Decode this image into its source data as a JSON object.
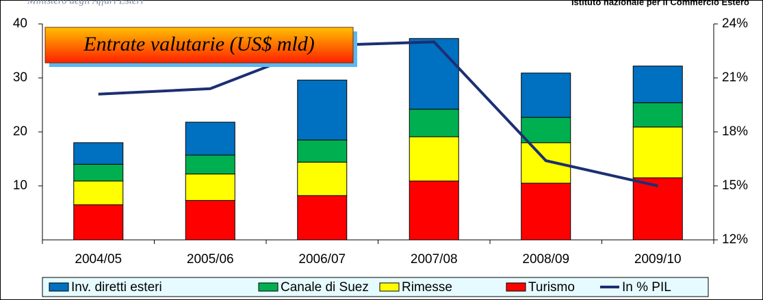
{
  "header": {
    "left": "Ministero degli Affari Esteri",
    "right": "Istituto nazionale per il Commercio Estero"
  },
  "chart_data": {
    "type": "bar",
    "stacked": true,
    "title": "Entrate valutarie (US$ mld)",
    "categories": [
      "2004/05",
      "2005/06",
      "2006/07",
      "2007/08",
      "2008/09",
      "2009/10"
    ],
    "series": [
      {
        "name": "Inv. diretti esteri",
        "color": "#0070c0",
        "values": [
          4.0,
          6.1,
          11.1,
          13.1,
          8.2,
          6.8
        ]
      },
      {
        "name": "Canale di Suez",
        "color": "#00b050",
        "values": [
          3.1,
          3.5,
          4.1,
          5.1,
          4.7,
          4.5
        ]
      },
      {
        "name": "Rimesse",
        "color": "#ffff00",
        "values": [
          4.4,
          4.9,
          6.2,
          8.2,
          7.5,
          9.4
        ]
      },
      {
        "name": "Turismo",
        "color": "#ff0000",
        "values": [
          6.5,
          7.3,
          8.2,
          10.9,
          10.5,
          11.5
        ]
      },
      {
        "name": "In % PIL",
        "color": "#1c2f73",
        "type": "line",
        "axis": "y2",
        "values": [
          20.1,
          20.4,
          22.8,
          23.0,
          16.4,
          15.0
        ]
      }
    ],
    "ylim": [
      0,
      40
    ],
    "yticks": [
      10,
      20,
      30,
      40
    ],
    "y2lim": [
      12,
      24
    ],
    "y2ticks": [
      {
        "value": 12,
        "label": "12%"
      },
      {
        "value": 15,
        "label": "15%"
      },
      {
        "value": 18,
        "label": "18%"
      },
      {
        "value": 21,
        "label": "21%"
      },
      {
        "value": 24,
        "label": "24%"
      }
    ],
    "grid": false,
    "legend": "bottom"
  }
}
